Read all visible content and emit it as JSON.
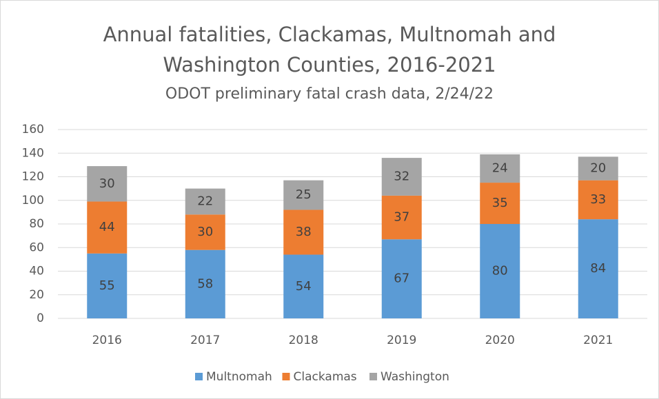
{
  "chart_data": {
    "type": "stacked_bar",
    "title": "Annual fatalities, Clackamas, Multnomah and Washington Counties, 2016-2021",
    "subtitle": "ODOT preliminary fatal crash data, 2/24/22",
    "categories": [
      "2016",
      "2017",
      "2018",
      "2019",
      "2020",
      "2021"
    ],
    "series": [
      {
        "name": "Multnomah",
        "color": "#5b9bd5",
        "values": [
          55,
          58,
          54,
          67,
          80,
          84
        ]
      },
      {
        "name": "Clackamas",
        "color": "#ed7d31",
        "values": [
          44,
          30,
          38,
          37,
          35,
          33
        ]
      },
      {
        "name": "Washington",
        "color": "#a5a5a5",
        "values": [
          30,
          22,
          25,
          32,
          24,
          20
        ]
      }
    ],
    "ylim": [
      0,
      160
    ],
    "yticks": [
      0,
      20,
      40,
      60,
      80,
      100,
      120,
      140,
      160
    ],
    "grid": true,
    "legend": "bottom"
  }
}
